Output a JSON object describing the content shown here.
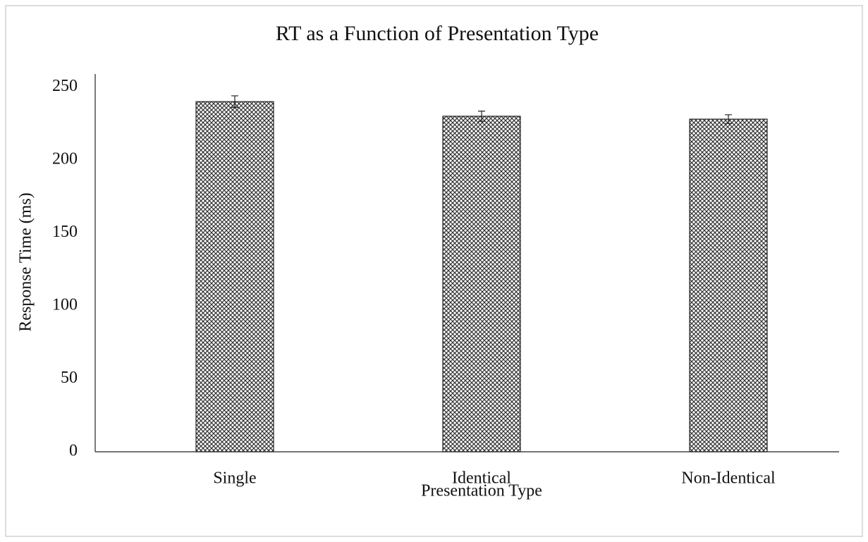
{
  "chart_data": {
    "type": "bar",
    "title": "RT as a Function of Presentation Type",
    "x_label": "Presentation Type",
    "y_label": "Response Time (ms)",
    "categories": [
      "Single",
      "Identical",
      "Non-Identical"
    ],
    "values": [
      240,
      230,
      228
    ],
    "errors": [
      4,
      3.5,
      3
    ],
    "color": "#333333",
    "ylim": [
      0,
      250
    ],
    "yticks": [
      0,
      50,
      100,
      150,
      200,
      250
    ],
    "grid": false
  }
}
